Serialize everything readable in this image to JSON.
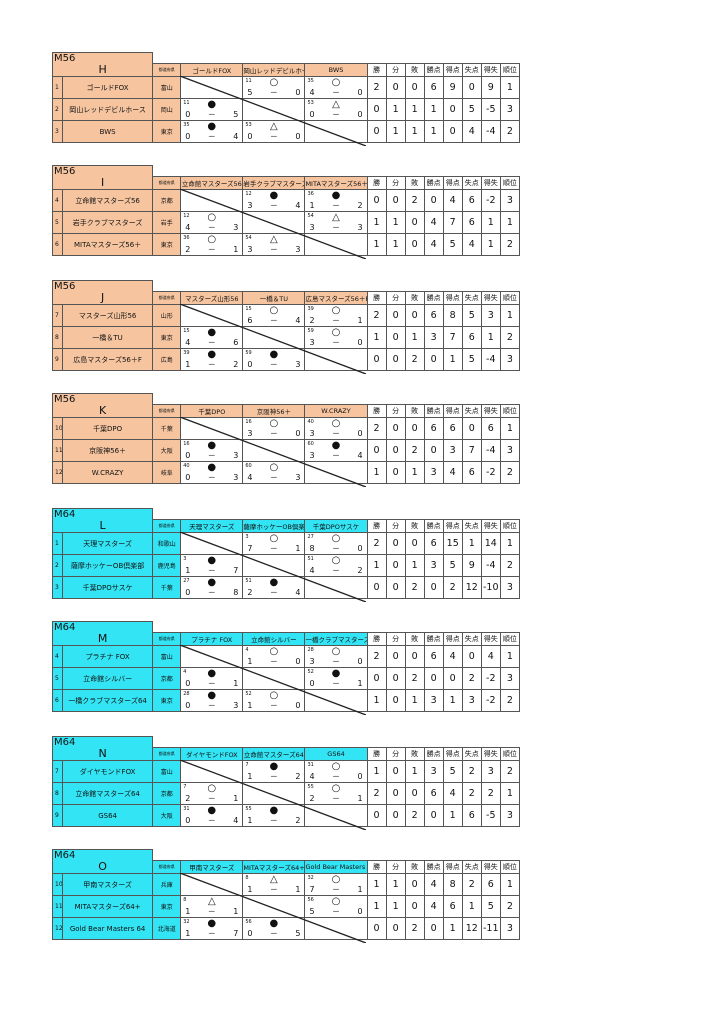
{
  "stat_headers": [
    "勝",
    "分",
    "敗",
    "勝点",
    "得点",
    "失点",
    "得失",
    "順位"
  ],
  "pref_header": "都道府県",
  "colors": {
    "M56": "#f6c5a0",
    "M64": "#33e4f4"
  },
  "groups": [
    {
      "division": "M56",
      "name": "H",
      "teams": [
        {
          "no": "1",
          "name": "ゴールドFOX",
          "pref": "富山",
          "results": [
            null,
            {
              "match": "11",
              "mark": "○",
              "score": [
                "5",
                "0"
              ]
            },
            {
              "match": "35",
              "mark": "○",
              "score": [
                "4",
                "0"
              ]
            }
          ],
          "stats": [
            "2",
            "0",
            "0",
            "6",
            "9",
            "0",
            "9",
            "1"
          ]
        },
        {
          "no": "2",
          "name": "岡山レッドデビルホース",
          "pref": "岡山",
          "results": [
            {
              "match": "11",
              "mark": "●",
              "score": [
                "0",
                "5"
              ]
            },
            null,
            {
              "match": "53",
              "mark": "△",
              "score": [
                "0",
                "0"
              ]
            }
          ],
          "stats": [
            "0",
            "1",
            "1",
            "1",
            "0",
            "5",
            "-5",
            "3"
          ]
        },
        {
          "no": "3",
          "name": "BWS",
          "pref": "東京",
          "results": [
            {
              "match": "35",
              "mark": "●",
              "score": [
                "0",
                "4"
              ]
            },
            {
              "match": "53",
              "mark": "△",
              "score": [
                "0",
                "0"
              ]
            },
            null
          ],
          "stats": [
            "0",
            "1",
            "1",
            "1",
            "0",
            "4",
            "-4",
            "2"
          ]
        }
      ]
    },
    {
      "division": "M56",
      "name": "I",
      "teams": [
        {
          "no": "4",
          "name": "立命館マスターズ56",
          "pref": "京都",
          "results": [
            null,
            {
              "match": "12",
              "mark": "●",
              "score": [
                "3",
                "4"
              ]
            },
            {
              "match": "36",
              "mark": "●",
              "score": [
                "1",
                "2"
              ]
            }
          ],
          "stats": [
            "0",
            "0",
            "2",
            "0",
            "4",
            "6",
            "-2",
            "3"
          ]
        },
        {
          "no": "5",
          "name": "岩手クラブマスターズ",
          "pref": "岩手",
          "results": [
            {
              "match": "12",
              "mark": "○",
              "score": [
                "4",
                "3"
              ]
            },
            null,
            {
              "match": "54",
              "mark": "△",
              "score": [
                "3",
                "3"
              ]
            }
          ],
          "stats": [
            "1",
            "1",
            "0",
            "4",
            "7",
            "6",
            "1",
            "1"
          ]
        },
        {
          "no": "6",
          "name": "MITAマスターズ56＋",
          "pref": "東京",
          "results": [
            {
              "match": "36",
              "mark": "○",
              "score": [
                "2",
                "1"
              ]
            },
            {
              "match": "54",
              "mark": "△",
              "score": [
                "3",
                "3"
              ]
            },
            null
          ],
          "stats": [
            "1",
            "1",
            "0",
            "4",
            "5",
            "4",
            "1",
            "2"
          ]
        }
      ]
    },
    {
      "division": "M56",
      "name": "J",
      "teams": [
        {
          "no": "7",
          "name": "マスターズ山形56",
          "pref": "山形",
          "results": [
            null,
            {
              "match": "15",
              "mark": "○",
              "score": [
                "6",
                "4"
              ]
            },
            {
              "match": "39",
              "mark": "○",
              "score": [
                "2",
                "1"
              ]
            }
          ],
          "stats": [
            "2",
            "0",
            "0",
            "6",
            "8",
            "5",
            "3",
            "1"
          ]
        },
        {
          "no": "8",
          "name": "一橋＆TU",
          "pref": "東京",
          "results": [
            {
              "match": "15",
              "mark": "●",
              "score": [
                "4",
                "6"
              ]
            },
            null,
            {
              "match": "59",
              "mark": "○",
              "score": [
                "3",
                "0"
              ]
            }
          ],
          "stats": [
            "1",
            "0",
            "1",
            "3",
            "7",
            "6",
            "1",
            "2"
          ]
        },
        {
          "no": "9",
          "name": "広島マスターズ56＋F",
          "pref": "広島",
          "results": [
            {
              "match": "39",
              "mark": "●",
              "score": [
                "1",
                "2"
              ]
            },
            {
              "match": "59",
              "mark": "●",
              "score": [
                "0",
                "3"
              ]
            },
            null
          ],
          "stats": [
            "0",
            "0",
            "2",
            "0",
            "1",
            "5",
            "-4",
            "3"
          ]
        }
      ]
    },
    {
      "division": "M56",
      "name": "K",
      "teams": [
        {
          "no": "10",
          "name": "千葉DPO",
          "pref": "千葉",
          "results": [
            null,
            {
              "match": "16",
              "mark": "○",
              "score": [
                "3",
                "0"
              ]
            },
            {
              "match": "40",
              "mark": "○",
              "score": [
                "3",
                "0"
              ]
            }
          ],
          "stats": [
            "2",
            "0",
            "0",
            "6",
            "6",
            "0",
            "6",
            "1"
          ]
        },
        {
          "no": "11",
          "name": "京阪神56＋",
          "pref": "大阪",
          "results": [
            {
              "match": "16",
              "mark": "●",
              "score": [
                "0",
                "3"
              ]
            },
            null,
            {
              "match": "60",
              "mark": "●",
              "score": [
                "3",
                "4"
              ]
            }
          ],
          "stats": [
            "0",
            "0",
            "2",
            "0",
            "3",
            "7",
            "-4",
            "3"
          ]
        },
        {
          "no": "12",
          "name": "W.CRAZY",
          "pref": "岐阜",
          "results": [
            {
              "match": "40",
              "mark": "●",
              "score": [
                "0",
                "3"
              ]
            },
            {
              "match": "60",
              "mark": "○",
              "score": [
                "4",
                "3"
              ]
            },
            null
          ],
          "stats": [
            "1",
            "0",
            "1",
            "3",
            "4",
            "6",
            "-2",
            "2"
          ]
        }
      ]
    },
    {
      "division": "M64",
      "name": "L",
      "teams": [
        {
          "no": "1",
          "name": "天理マスターズ",
          "pref": "和歌山",
          "results": [
            null,
            {
              "match": "3",
              "mark": "○",
              "score": [
                "7",
                "1"
              ]
            },
            {
              "match": "27",
              "mark": "○",
              "score": [
                "8",
                "0"
              ]
            }
          ],
          "stats": [
            "2",
            "0",
            "0",
            "6",
            "15",
            "1",
            "14",
            "1"
          ]
        },
        {
          "no": "2",
          "name": "薩摩ホッケーOB倶楽部",
          "pref": "鹿児島",
          "results": [
            {
              "match": "3",
              "mark": "●",
              "score": [
                "1",
                "7"
              ]
            },
            null,
            {
              "match": "51",
              "mark": "○",
              "score": [
                "4",
                "2"
              ]
            }
          ],
          "stats": [
            "1",
            "0",
            "1",
            "3",
            "5",
            "9",
            "-4",
            "2"
          ]
        },
        {
          "no": "3",
          "name": "千葉DPOサスケ",
          "pref": "千葉",
          "results": [
            {
              "match": "27",
              "mark": "●",
              "score": [
                "0",
                "8"
              ]
            },
            {
              "match": "51",
              "mark": "●",
              "score": [
                "2",
                "4"
              ]
            },
            null
          ],
          "stats": [
            "0",
            "0",
            "2",
            "0",
            "2",
            "12",
            "-10",
            "3"
          ]
        }
      ]
    },
    {
      "division": "M64",
      "name": "M",
      "teams": [
        {
          "no": "4",
          "name": "プラチナ FOX",
          "pref": "富山",
          "results": [
            null,
            {
              "match": "4",
              "mark": "○",
              "score": [
                "1",
                "0"
              ]
            },
            {
              "match": "28",
              "mark": "○",
              "score": [
                "3",
                "0"
              ]
            }
          ],
          "stats": [
            "2",
            "0",
            "0",
            "6",
            "4",
            "0",
            "4",
            "1"
          ]
        },
        {
          "no": "5",
          "name": "立命館シルバー",
          "pref": "京都",
          "results": [
            {
              "match": "4",
              "mark": "●",
              "score": [
                "0",
                "1"
              ]
            },
            null,
            {
              "match": "52",
              "mark": "●",
              "score": [
                "0",
                "1"
              ]
            }
          ],
          "stats": [
            "0",
            "0",
            "2",
            "0",
            "0",
            "2",
            "-2",
            "3"
          ]
        },
        {
          "no": "6",
          "name": "一橋クラブマスターズ64",
          "pref": "東京",
          "results": [
            {
              "match": "28",
              "mark": "●",
              "score": [
                "0",
                "3"
              ]
            },
            {
              "match": "52",
              "mark": "○",
              "score": [
                "1",
                "0"
              ]
            },
            null
          ],
          "stats": [
            "1",
            "0",
            "1",
            "3",
            "1",
            "3",
            "-2",
            "2"
          ]
        }
      ]
    },
    {
      "division": "M64",
      "name": "N",
      "teams": [
        {
          "no": "7",
          "name": "ダイヤモンドFOX",
          "pref": "富山",
          "results": [
            null,
            {
              "match": "7",
              "mark": "●",
              "score": [
                "1",
                "2"
              ]
            },
            {
              "match": "31",
              "mark": "○",
              "score": [
                "4",
                "0"
              ]
            }
          ],
          "stats": [
            "1",
            "0",
            "1",
            "3",
            "5",
            "2",
            "3",
            "2"
          ]
        },
        {
          "no": "8",
          "name": "立命館マスターズ64",
          "pref": "京都",
          "results": [
            {
              "match": "7",
              "mark": "○",
              "score": [
                "2",
                "1"
              ]
            },
            null,
            {
              "match": "55",
              "mark": "○",
              "score": [
                "2",
                "1"
              ]
            }
          ],
          "stats": [
            "2",
            "0",
            "0",
            "6",
            "4",
            "2",
            "2",
            "1"
          ]
        },
        {
          "no": "9",
          "name": "GS64",
          "pref": "大阪",
          "results": [
            {
              "match": "31",
              "mark": "●",
              "score": [
                "0",
                "4"
              ]
            },
            {
              "match": "55",
              "mark": "●",
              "score": [
                "1",
                "2"
              ]
            },
            null
          ],
          "stats": [
            "0",
            "0",
            "2",
            "0",
            "1",
            "6",
            "-5",
            "3"
          ]
        }
      ]
    },
    {
      "division": "M64",
      "name": "O",
      "teams": [
        {
          "no": "10",
          "name": "甲南マスターズ",
          "pref": "兵庫",
          "results": [
            null,
            {
              "match": "8",
              "mark": "△",
              "score": [
                "1",
                "1"
              ]
            },
            {
              "match": "32",
              "mark": "○",
              "score": [
                "7",
                "1"
              ]
            }
          ],
          "stats": [
            "1",
            "1",
            "0",
            "4",
            "8",
            "2",
            "6",
            "1"
          ]
        },
        {
          "no": "11",
          "name": "MITAマスターズ64+",
          "pref": "東京",
          "results": [
            {
              "match": "8",
              "mark": "△",
              "score": [
                "1",
                "1"
              ]
            },
            null,
            {
              "match": "56",
              "mark": "○",
              "score": [
                "5",
                "0"
              ]
            }
          ],
          "stats": [
            "1",
            "1",
            "0",
            "4",
            "6",
            "1",
            "5",
            "2"
          ]
        },
        {
          "no": "12",
          "name": "Gold Bear Masters 64",
          "pref": "北海道",
          "results": [
            {
              "match": "32",
              "mark": "●",
              "score": [
                "1",
                "7"
              ]
            },
            {
              "match": "56",
              "mark": "●",
              "score": [
                "0",
                "5"
              ]
            },
            null
          ],
          "stats": [
            "0",
            "0",
            "2",
            "0",
            "1",
            "12",
            "-11",
            "3"
          ]
        }
      ]
    }
  ]
}
